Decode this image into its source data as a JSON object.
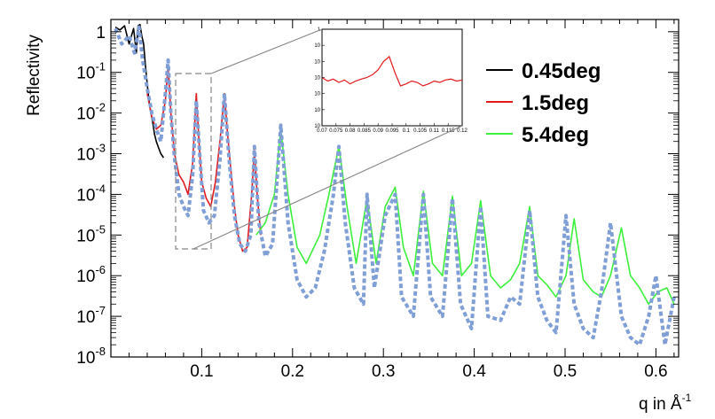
{
  "chart_data": {
    "type": "line",
    "xlabel": "q in Å",
    "xlabel_superscript": "-1",
    "ylabel": "Reflectivity",
    "xlim": [
      0.0,
      0.625
    ],
    "ylim": [
      1e-08,
      2
    ],
    "yscale": "log",
    "grid": false,
    "legend_position": "top-right",
    "x_ticks": [
      {
        "value": 0.1,
        "label": "0.1"
      },
      {
        "value": 0.2,
        "label": "0.2"
      },
      {
        "value": 0.3,
        "label": "0.3"
      },
      {
        "value": 0.4,
        "label": "0.4"
      },
      {
        "value": 0.5,
        "label": "0.5"
      },
      {
        "value": 0.6,
        "label": "0.6"
      }
    ],
    "y_ticks": [
      {
        "value": 1,
        "base": "1",
        "exp": ""
      },
      {
        "value": 0.1,
        "base": "10",
        "exp": "-1"
      },
      {
        "value": 0.01,
        "base": "10",
        "exp": "-2"
      },
      {
        "value": 0.001,
        "base": "10",
        "exp": "-3"
      },
      {
        "value": 0.0001,
        "base": "10",
        "exp": "-4"
      },
      {
        "value": 1e-05,
        "base": "10",
        "exp": "-5"
      },
      {
        "value": 1e-06,
        "base": "10",
        "exp": "-6"
      },
      {
        "value": 1e-07,
        "base": "10",
        "exp": "-7"
      },
      {
        "value": 1e-08,
        "base": "10",
        "exp": "-8"
      }
    ],
    "series": [
      {
        "name": "0.45deg",
        "color": "#000000",
        "style": "solid",
        "x": [
          0.005,
          0.01,
          0.015,
          0.02,
          0.025,
          0.028,
          0.03,
          0.032,
          0.034,
          0.036,
          0.038,
          0.04,
          0.042,
          0.044,
          0.046,
          0.048,
          0.05,
          0.052,
          0.055,
          0.058
        ],
        "y": [
          1.3,
          1.1,
          1.4,
          0.5,
          1.2,
          0.3,
          1.4,
          1.5,
          0.8,
          0.5,
          0.15,
          0.05,
          0.02,
          0.01,
          0.006,
          0.003,
          0.002,
          0.0015,
          0.001,
          0.0008
        ]
      },
      {
        "name": "1.5deg",
        "color": "#e31a1c",
        "style": "solid",
        "x": [
          0.04,
          0.045,
          0.05,
          0.055,
          0.06,
          0.063,
          0.066,
          0.07,
          0.075,
          0.08,
          0.085,
          0.09,
          0.094,
          0.097,
          0.1,
          0.105,
          0.11,
          0.115,
          0.12,
          0.125,
          0.128,
          0.132,
          0.136,
          0.14,
          0.145,
          0.15,
          0.155,
          0.158,
          0.161,
          0.165
        ],
        "y": [
          0.03,
          0.008,
          0.004,
          0.005,
          0.02,
          0.15,
          0.01,
          0.001,
          0.0003,
          0.0002,
          0.0001,
          0.0006,
          0.03,
          0.002,
          0.0002,
          8e-05,
          5e-05,
          0.0002,
          0.002,
          0.03,
          0.004,
          0.0004,
          5e-05,
          1e-05,
          4e-06,
          5e-06,
          0.0001,
          0.0012,
          0.0001,
          1e-05
        ]
      },
      {
        "name": "5.4deg",
        "color": "#3cf03c",
        "style": "solid",
        "x": [
          0.16,
          0.17,
          0.18,
          0.187,
          0.195,
          0.205,
          0.215,
          0.23,
          0.24,
          0.251,
          0.26,
          0.27,
          0.282,
          0.292,
          0.302,
          0.313,
          0.322,
          0.333,
          0.344,
          0.354,
          0.365,
          0.376,
          0.386,
          0.397,
          0.407,
          0.418,
          0.429,
          0.44,
          0.45,
          0.461,
          0.47,
          0.48,
          0.49,
          0.501,
          0.51,
          0.52,
          0.531,
          0.54,
          0.55,
          0.562,
          0.572,
          0.582,
          0.592,
          0.602,
          0.612,
          0.62
        ],
        "y": [
          1e-05,
          2e-05,
          0.0001,
          0.004,
          0.0001,
          5e-06,
          2e-06,
          1e-05,
          0.0001,
          0.0015,
          5e-05,
          2e-06,
          8e-05,
          2e-06,
          5e-05,
          0.00015,
          5e-06,
          1e-06,
          0.00012,
          2e-06,
          1e-06,
          9e-05,
          1e-06,
          2e-06,
          7e-05,
          1e-06,
          5e-07,
          8e-07,
          2e-06,
          5e-05,
          1e-06,
          6e-07,
          3e-07,
          1e-06,
          2.5e-05,
          8e-07,
          4e-07,
          3e-07,
          1e-06,
          1.5e-05,
          1e-06,
          5e-07,
          2e-07,
          4e-07,
          5e-07,
          2e-07
        ]
      },
      {
        "name": "",
        "color": "#7f9fd6",
        "style": "dashed",
        "x": [
          0.005,
          0.012,
          0.02,
          0.026,
          0.031,
          0.035,
          0.04,
          0.045,
          0.05,
          0.055,
          0.06,
          0.063,
          0.066,
          0.07,
          0.075,
          0.08,
          0.085,
          0.09,
          0.094,
          0.098,
          0.102,
          0.108,
          0.114,
          0.12,
          0.125,
          0.13,
          0.136,
          0.142,
          0.148,
          0.154,
          0.158,
          0.163,
          0.17,
          0.178,
          0.187,
          0.195,
          0.205,
          0.215,
          0.225,
          0.235,
          0.245,
          0.251,
          0.258,
          0.268,
          0.278,
          0.282,
          0.29,
          0.302,
          0.313,
          0.32,
          0.333,
          0.344,
          0.352,
          0.365,
          0.376,
          0.385,
          0.397,
          0.407,
          0.415,
          0.429,
          0.44,
          0.45,
          0.461,
          0.47,
          0.48,
          0.49,
          0.501,
          0.51,
          0.52,
          0.531,
          0.54,
          0.55,
          0.562,
          0.572,
          0.582,
          0.592,
          0.6,
          0.61,
          0.62
        ],
        "y": [
          1.2,
          0.5,
          0.8,
          0.3,
          1.3,
          0.2,
          0.04,
          0.01,
          0.004,
          0.002,
          0.03,
          0.2,
          0.01,
          0.0008,
          0.0001,
          5e-05,
          3e-05,
          0.0003,
          0.02,
          0.0008,
          4e-05,
          2e-05,
          3e-05,
          0.0007,
          0.03,
          0.0008,
          3e-05,
          6e-06,
          4e-06,
          1e-05,
          0.0015,
          2e-05,
          3e-06,
          6e-06,
          0.005,
          2e-05,
          8e-07,
          3e-07,
          5e-07,
          4e-06,
          0.0001,
          0.0015,
          2e-05,
          5e-07,
          2e-07,
          0.0001,
          5e-07,
          3e-05,
          0.0001,
          3e-07,
          1e-07,
          0.0001,
          3e-07,
          1e-07,
          8e-05,
          2e-07,
          5e-08,
          5e-05,
          1e-07,
          8e-08,
          3e-07,
          2e-07,
          4e-05,
          3e-07,
          8e-08,
          4e-08,
          3e-05,
          2e-07,
          5e-08,
          3e-08,
          4e-07,
          2e-05,
          1e-07,
          3e-08,
          2e-08,
          1e-07,
          1e-06,
          2e-08,
          3e-07
        ]
      }
    ],
    "inset": {
      "xlim": [
        0.07,
        0.12
      ],
      "ylim": [
        1e-06,
        1
      ],
      "x_ticks": [
        "0.07",
        "0.075",
        "0.08",
        "0.085",
        "0.09",
        "0.095",
        "0.1",
        "0.105",
        "0.11",
        "0.115",
        "0.12"
      ],
      "y_ticks": [
        "1",
        "10",
        "10",
        "10",
        "10",
        "10",
        "10"
      ],
      "zoom_box": {
        "x": [
          0.08,
          0.11
        ],
        "y": [
          5e-06,
          0.1
        ]
      },
      "series": {
        "color": "#e31a1c",
        "x": [
          0.07,
          0.072,
          0.074,
          0.076,
          0.078,
          0.08,
          0.082,
          0.084,
          0.086,
          0.088,
          0.09,
          0.092,
          0.094,
          0.096,
          0.098,
          0.1,
          0.102,
          0.104,
          0.106,
          0.108,
          0.11,
          0.112,
          0.114,
          0.116,
          0.118,
          0.12
        ],
        "y": [
          0.001,
          0.0006,
          0.0008,
          0.0005,
          0.0007,
          0.0004,
          0.0006,
          0.0008,
          0.001,
          0.0015,
          0.003,
          0.01,
          0.02,
          0.002,
          0.0003,
          0.0004,
          0.0006,
          0.0005,
          0.0003,
          0.0004,
          0.0006,
          0.0005,
          0.0007,
          0.0008,
          0.0006,
          0.0007
        ]
      }
    }
  }
}
